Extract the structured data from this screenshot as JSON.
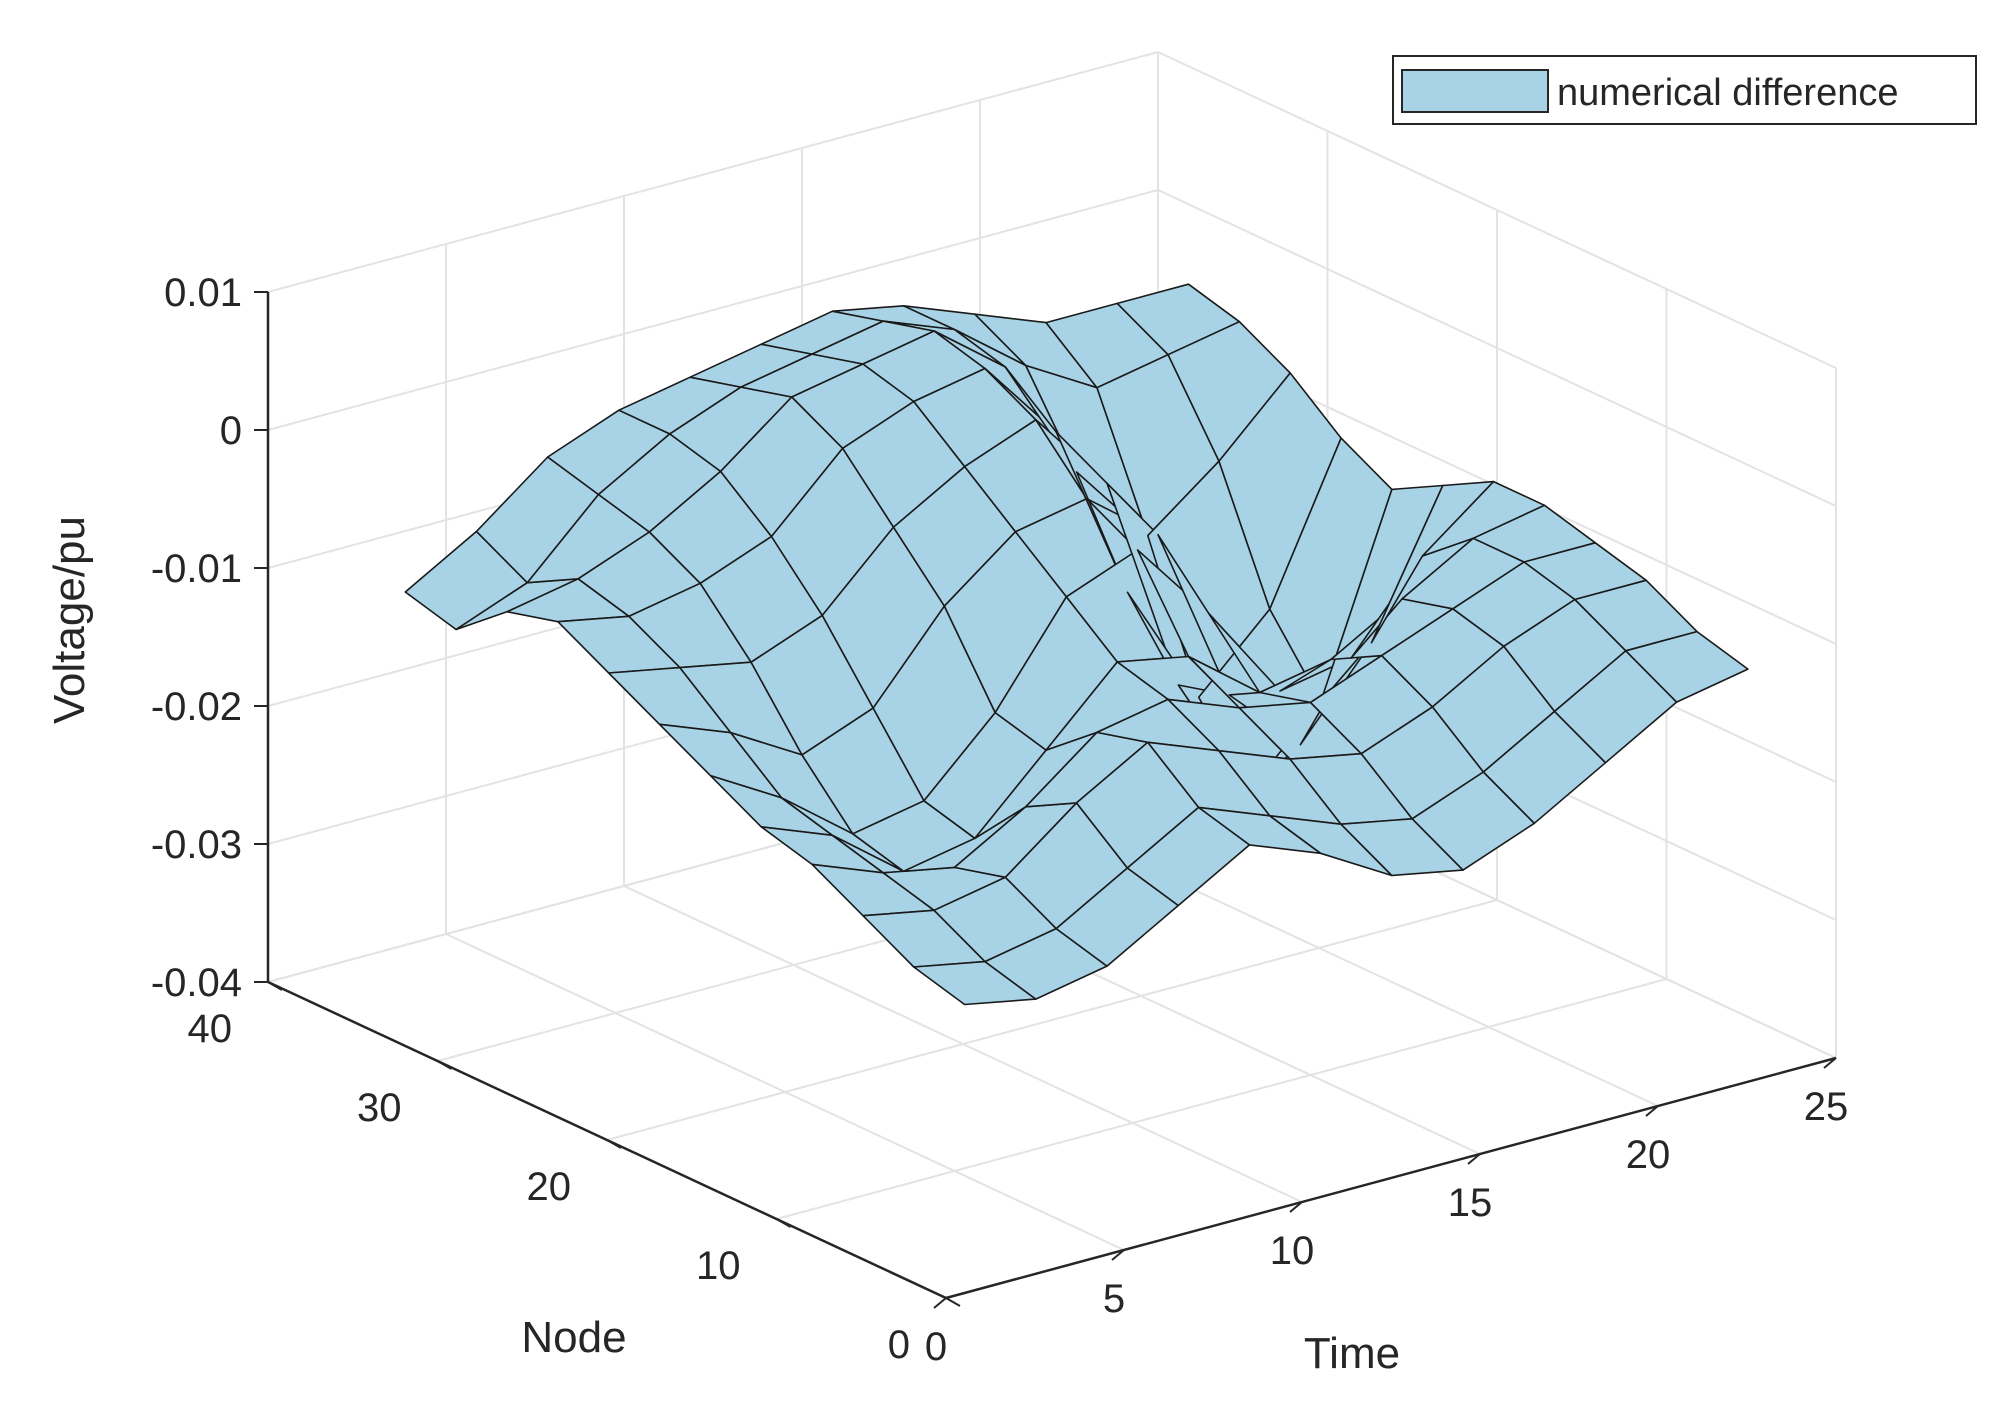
{
  "chart_data": {
    "type": "surface",
    "title": "",
    "xlabel": "Time",
    "ylabel": "Node",
    "zlabel": "Voltage/pu",
    "xlim": [
      0,
      25
    ],
    "ylim": [
      0,
      40
    ],
    "zlim": [
      -0.04,
      0.01
    ],
    "x_ticks": [
      "0",
      "5",
      "10",
      "15",
      "20",
      "25"
    ],
    "y_ticks": [
      "0",
      "10",
      "20",
      "30",
      "40"
    ],
    "z_ticks": [
      "-0.04",
      "-0.03",
      "-0.02",
      "-0.01",
      "0",
      "0.01"
    ],
    "grid": true,
    "legend_position": "top-right",
    "series": [
      {
        "name": "numerical difference",
        "color": "#a8d3e6",
        "edge_color": "#1a1a1a",
        "time": [
          1,
          3,
          5,
          7,
          9,
          11,
          13,
          15,
          17,
          19,
          21,
          23
        ],
        "node": [
          1,
          4,
          7,
          10,
          13,
          16,
          19,
          22,
          25,
          28,
          31,
          34
        ],
        "values": [
          [
            -0.02,
            -0.021,
            -0.02,
            -0.017,
            -0.014,
            -0.016,
            -0.019,
            -0.02,
            -0.018,
            -0.015,
            -0.012,
            -0.011
          ],
          [
            -0.019,
            -0.02,
            -0.019,
            -0.016,
            -0.013,
            -0.015,
            -0.017,
            -0.018,
            -0.016,
            -0.013,
            -0.01,
            -0.01
          ],
          [
            -0.017,
            -0.018,
            -0.017,
            -0.013,
            -0.01,
            -0.012,
            -0.014,
            -0.015,
            -0.013,
            -0.01,
            -0.008,
            -0.008
          ],
          [
            -0.015,
            -0.017,
            -0.018,
            -0.015,
            -0.011,
            -0.01,
            -0.012,
            -0.013,
            -0.011,
            -0.009,
            -0.007,
            -0.007
          ],
          [
            -0.014,
            -0.016,
            -0.02,
            -0.019,
            -0.014,
            -0.009,
            -0.01,
            -0.014,
            -0.013,
            -0.01,
            -0.007,
            -0.006
          ],
          [
            -0.012,
            -0.015,
            -0.019,
            -0.018,
            -0.013,
            -0.006,
            -0.004,
            -0.01,
            -0.017,
            -0.016,
            -0.01,
            -0.006
          ],
          [
            -0.01,
            -0.012,
            -0.015,
            -0.013,
            -0.007,
            -0.003,
            -0.002,
            -0.006,
            -0.019,
            -0.024,
            -0.018,
            -0.008
          ],
          [
            -0.008,
            -0.009,
            -0.01,
            -0.008,
            -0.003,
            0.0,
            0.002,
            -0.004,
            -0.02,
            -0.029,
            -0.024,
            -0.01
          ],
          [
            -0.006,
            -0.007,
            -0.006,
            -0.004,
            0.001,
            0.003,
            0.004,
            -0.002,
            -0.015,
            -0.024,
            -0.019,
            -0.008
          ],
          [
            -0.007,
            -0.006,
            -0.004,
            -0.001,
            0.003,
            0.004,
            0.005,
            0.001,
            -0.008,
            -0.014,
            -0.01,
            -0.005
          ],
          [
            -0.01,
            -0.008,
            -0.003,
            0.0,
            0.002,
            0.003,
            0.004,
            0.002,
            -0.002,
            -0.005,
            -0.004,
            -0.003
          ],
          [
            -0.009,
            -0.006,
            -0.002,
            0.0,
            0.001,
            0.002,
            0.003,
            0.002,
            0.0,
            -0.002,
            -0.002,
            -0.002
          ]
        ]
      }
    ]
  }
}
